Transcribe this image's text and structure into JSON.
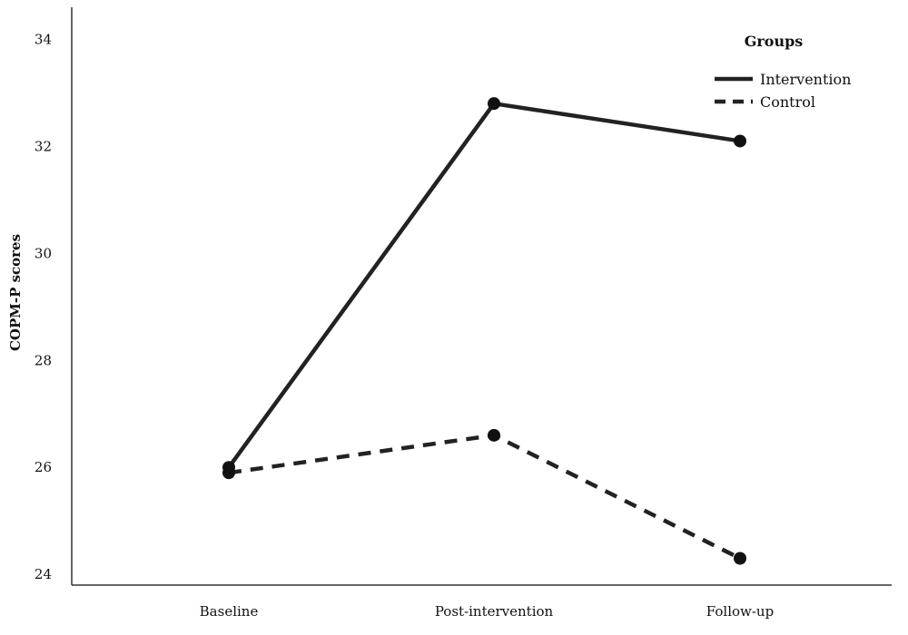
{
  "chart_data": {
    "type": "line",
    "title": "",
    "xlabel": "",
    "ylabel": "COPM-P scores",
    "categories": [
      "Baseline",
      "Post-intervention",
      "Follow-up"
    ],
    "ylim": [
      23.8,
      34.6
    ],
    "yticks": [
      24,
      26,
      28,
      30,
      32,
      34
    ],
    "grid": false,
    "legend": {
      "title": "Groups",
      "position": "top-right"
    },
    "series": [
      {
        "name": "Intervention",
        "values": [
          26.0,
          32.8,
          32.1
        ],
        "style": "solid",
        "color": "#222222"
      },
      {
        "name": "Control",
        "values": [
          25.9,
          26.6,
          24.3
        ],
        "style": "dashed",
        "color": "#222222"
      }
    ]
  }
}
